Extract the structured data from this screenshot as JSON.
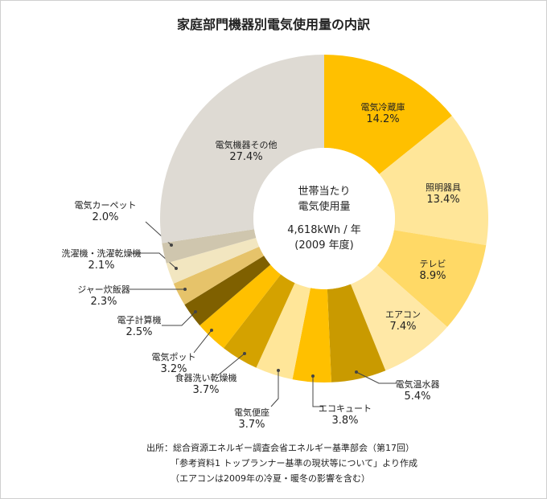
{
  "chart_data": {
    "type": "pie",
    "donut": true,
    "title": "家庭部門機器別電気使用量の内訳",
    "center_text": [
      "世帯当たり",
      "電気使用量",
      "4,618kWh / 年",
      "(2009 年度)"
    ],
    "unit": "%",
    "slices": [
      {
        "label": "電気冷蔵庫",
        "value": 14.2,
        "value_label": "14.2%",
        "color": "#FFC000"
      },
      {
        "label": "照明器具",
        "value": 13.4,
        "value_label": "13.4%",
        "color": "#FFE699"
      },
      {
        "label": "テレビ",
        "value": 8.9,
        "value_label": "8.9%",
        "color": "#FFD966"
      },
      {
        "label": "エアコン",
        "value": 7.4,
        "value_label": "7.4%",
        "color": "#FFE8A6"
      },
      {
        "label": "電気温水器",
        "value": 5.4,
        "value_label": "5.4%",
        "color": "#C99A00"
      },
      {
        "label": "エコキュート",
        "value": 3.8,
        "value_label": "3.8%",
        "color": "#FFC000"
      },
      {
        "label": "電気便座",
        "value": 3.7,
        "value_label": "3.7%",
        "color": "#FFE699"
      },
      {
        "label": "食器洗い乾燥機",
        "value": 3.7,
        "value_label": "3.7%",
        "color": "#D4A200"
      },
      {
        "label": "電気ポット",
        "value": 3.2,
        "value_label": "3.2%",
        "color": "#FFC000"
      },
      {
        "label": "電子計算機",
        "value": 2.5,
        "value_label": "2.5%",
        "color": "#7F6000"
      },
      {
        "label": "ジャー炊飯器",
        "value": 2.3,
        "value_label": "2.3%",
        "color": "#E6C36A"
      },
      {
        "label": "洗濯機・洗濯乾燥機",
        "value": 2.1,
        "value_label": "2.1%",
        "color": "#F2E6C0"
      },
      {
        "label": "電気カーペット",
        "value": 2.0,
        "value_label": "2.0%",
        "color": "#CFC6AE"
      },
      {
        "label": "電気機器その他",
        "value": 27.4,
        "value_label": "27.4%",
        "color": "#DEDAD3"
      }
    ]
  },
  "source": [
    "出所：総合資源エネルギー調査会省エネルギー基準部会（第17回）",
    "「参考資料1 トップランナー基準の現状等について」より作成",
    "（エアコンは2009年の冷夏・暖冬の影響を含む）"
  ]
}
